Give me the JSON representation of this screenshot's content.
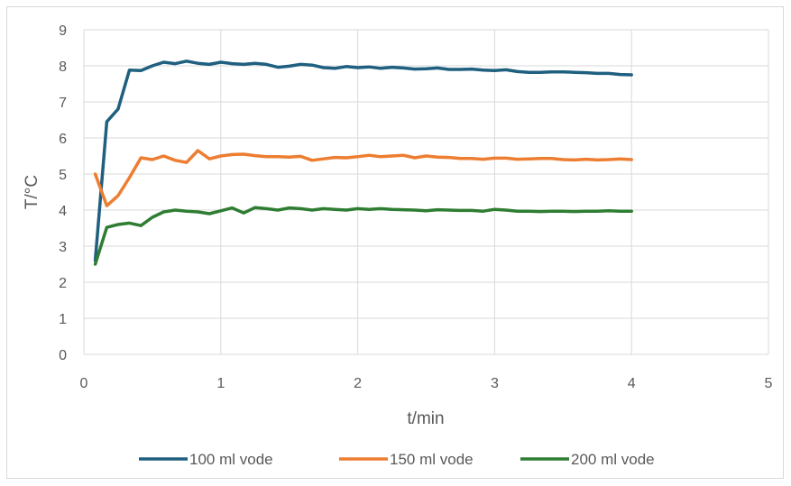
{
  "chart_data": {
    "type": "line",
    "title": "",
    "xlabel": "t/min",
    "ylabel": "T/°C",
    "xlim": [
      0,
      5
    ],
    "ylim": [
      0,
      9
    ],
    "xticks": [
      0,
      1,
      2,
      3,
      4,
      5
    ],
    "yticks": [
      0,
      1,
      2,
      3,
      4,
      5,
      6,
      7,
      8,
      9
    ],
    "grid": true,
    "legend_position": "bottom",
    "series": [
      {
        "name": "100 ml vode",
        "color": "#1f5f7f",
        "x": [
          0.083,
          0.167,
          0.25,
          0.333,
          0.417,
          0.5,
          0.583,
          0.667,
          0.75,
          0.833,
          0.917,
          1.0,
          1.083,
          1.167,
          1.25,
          1.333,
          1.417,
          1.5,
          1.583,
          1.667,
          1.75,
          1.833,
          1.917,
          2.0,
          2.083,
          2.167,
          2.25,
          2.333,
          2.417,
          2.5,
          2.583,
          2.667,
          2.75,
          2.833,
          2.917,
          3.0,
          3.083,
          3.167,
          3.25,
          3.333,
          3.417,
          3.5,
          3.583,
          3.667,
          3.75,
          3.833,
          3.917,
          4.0
        ],
        "y": [
          2.6,
          6.45,
          6.8,
          7.88,
          7.87,
          8.0,
          8.1,
          8.06,
          8.13,
          8.07,
          8.04,
          8.1,
          8.06,
          8.04,
          8.07,
          8.04,
          7.96,
          7.99,
          8.04,
          8.02,
          7.95,
          7.93,
          7.98,
          7.95,
          7.97,
          7.93,
          7.96,
          7.94,
          7.91,
          7.92,
          7.94,
          7.9,
          7.9,
          7.91,
          7.88,
          7.87,
          7.89,
          7.84,
          7.82,
          7.82,
          7.83,
          7.83,
          7.82,
          7.81,
          7.79,
          7.79,
          7.76,
          7.75
        ]
      },
      {
        "name": "150 ml vode",
        "color": "#ed7d31",
        "x": [
          0.083,
          0.167,
          0.25,
          0.333,
          0.417,
          0.5,
          0.583,
          0.667,
          0.75,
          0.833,
          0.917,
          1.0,
          1.083,
          1.167,
          1.25,
          1.333,
          1.417,
          1.5,
          1.583,
          1.667,
          1.75,
          1.833,
          1.917,
          2.0,
          2.083,
          2.167,
          2.25,
          2.333,
          2.417,
          2.5,
          2.583,
          2.667,
          2.75,
          2.833,
          2.917,
          3.0,
          3.083,
          3.167,
          3.25,
          3.333,
          3.417,
          3.5,
          3.583,
          3.667,
          3.75,
          3.833,
          3.917,
          4.0
        ],
        "y": [
          5.0,
          4.12,
          4.4,
          4.9,
          5.45,
          5.4,
          5.5,
          5.38,
          5.32,
          5.65,
          5.42,
          5.5,
          5.54,
          5.55,
          5.51,
          5.48,
          5.48,
          5.47,
          5.49,
          5.38,
          5.42,
          5.46,
          5.45,
          5.48,
          5.52,
          5.48,
          5.5,
          5.52,
          5.45,
          5.5,
          5.47,
          5.46,
          5.43,
          5.43,
          5.41,
          5.44,
          5.44,
          5.41,
          5.42,
          5.43,
          5.43,
          5.4,
          5.39,
          5.41,
          5.39,
          5.4,
          5.42,
          5.4
        ]
      },
      {
        "name": "200 ml vode",
        "color": "#2e7d32",
        "x": [
          0.083,
          0.167,
          0.25,
          0.333,
          0.417,
          0.5,
          0.583,
          0.667,
          0.75,
          0.833,
          0.917,
          1.0,
          1.083,
          1.167,
          1.25,
          1.333,
          1.417,
          1.5,
          1.583,
          1.667,
          1.75,
          1.833,
          1.917,
          2.0,
          2.083,
          2.167,
          2.25,
          2.333,
          2.417,
          2.5,
          2.583,
          2.667,
          2.75,
          2.833,
          2.917,
          3.0,
          3.083,
          3.167,
          3.25,
          3.333,
          3.417,
          3.5,
          3.583,
          3.667,
          3.75,
          3.833,
          3.917,
          4.0
        ],
        "y": [
          2.5,
          3.52,
          3.6,
          3.64,
          3.57,
          3.8,
          3.95,
          4.0,
          3.97,
          3.95,
          3.9,
          3.98,
          4.06,
          3.92,
          4.07,
          4.04,
          4.0,
          4.06,
          4.04,
          4.0,
          4.04,
          4.02,
          4.0,
          4.04,
          4.02,
          4.04,
          4.02,
          4.01,
          4.0,
          3.98,
          4.01,
          4.0,
          3.99,
          3.99,
          3.97,
          4.02,
          4.0,
          3.97,
          3.97,
          3.96,
          3.97,
          3.97,
          3.96,
          3.97,
          3.97,
          3.98,
          3.97,
          3.97
        ]
      }
    ]
  }
}
